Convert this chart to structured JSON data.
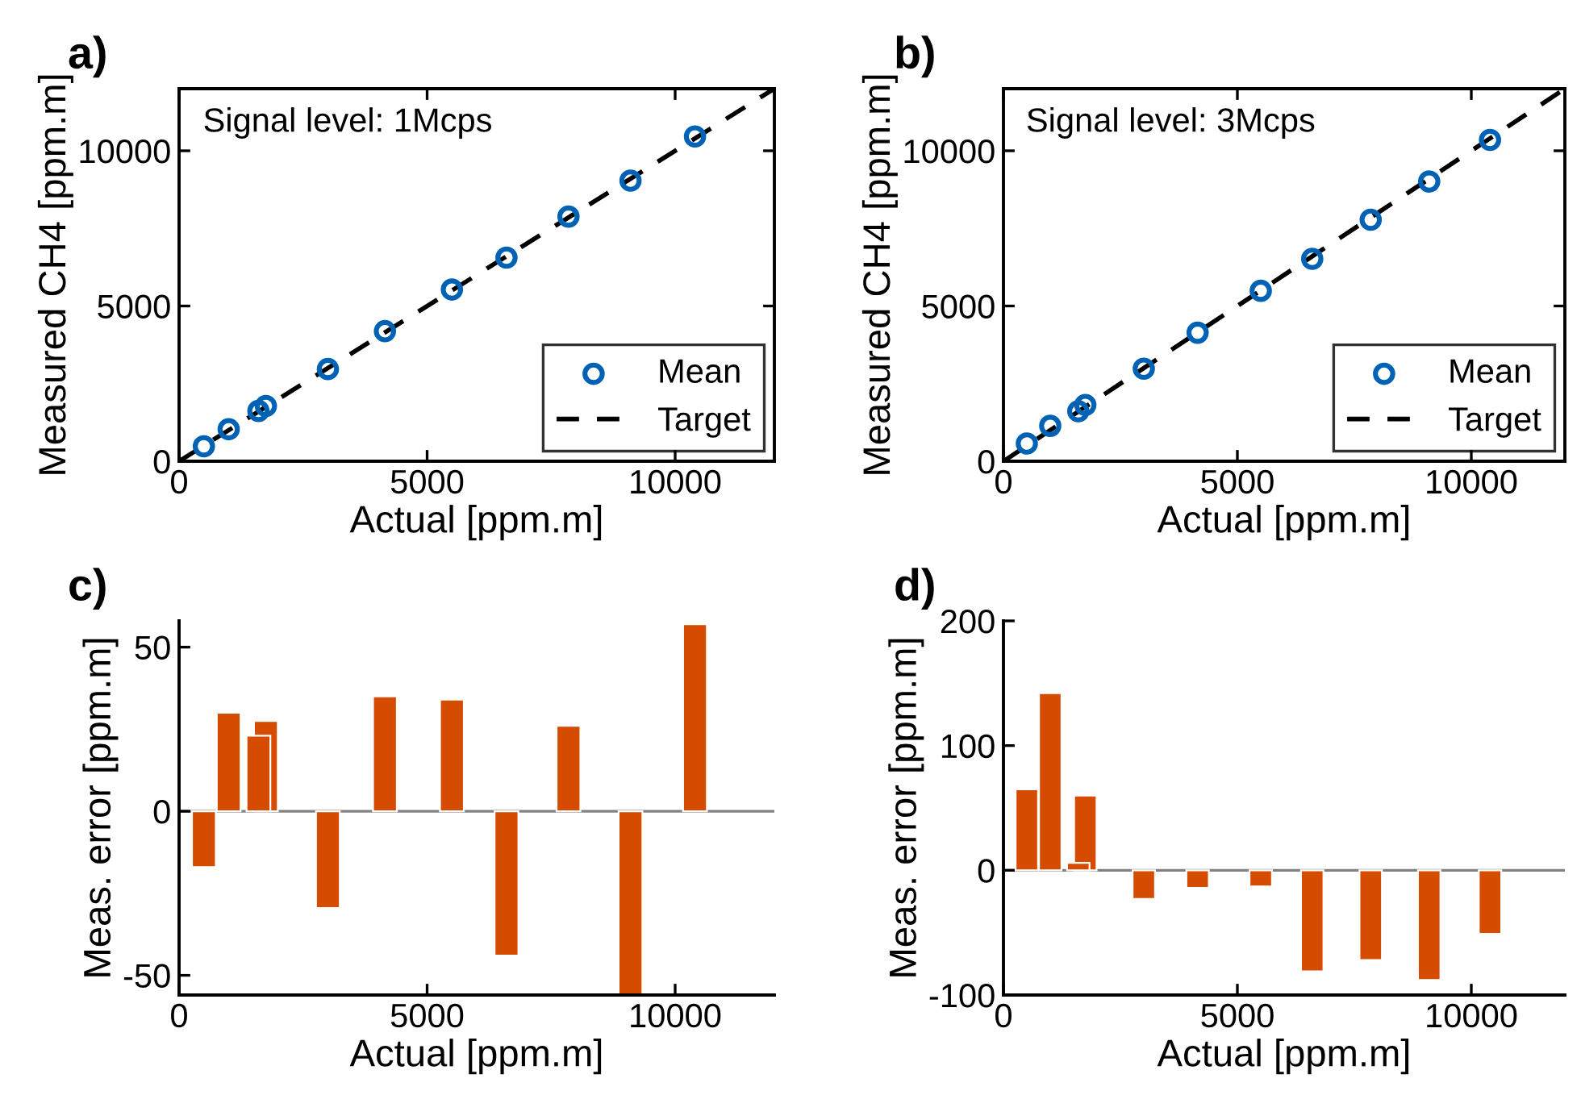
{
  "chart_data": [
    {
      "type": "scatter",
      "title": "a)",
      "xlabel": "Actual [ppm.m]",
      "ylabel": "Measured CH4 [ppm.m]",
      "annotations": [
        "Signal level: 1Mcps"
      ],
      "xlim": [
        0,
        12000
      ],
      "ylim": [
        0,
        12000
      ],
      "xticks": [
        0,
        5000,
        10000
      ],
      "yticks": [
        0,
        5000,
        10000
      ],
      "grid": false,
      "legend": "bottom right",
      "series": [
        {
          "name": "Mean",
          "type": "scatter",
          "marker": "circle",
          "color": "#0062b4",
          "x": [
            500,
            1000,
            1600,
            1750,
            3000,
            4150,
            5500,
            6600,
            7850,
            9100,
            10400
          ],
          "values": [
            480,
            1030,
            1620,
            1780,
            2970,
            4190,
            5530,
            6560,
            7880,
            9040,
            10460
          ]
        },
        {
          "name": "Target",
          "type": "line",
          "marker": "none",
          "line_style": "dashed",
          "color": "#000000",
          "x": [
            0,
            12000
          ],
          "values": [
            0,
            12000
          ]
        }
      ]
    },
    {
      "type": "scatter",
      "title": "b)",
      "xlabel": "Actual [ppm.m]",
      "ylabel": "Measured CH4 [ppm.m]",
      "annotations": [
        "Signal level: 3Mcps"
      ],
      "xlim": [
        0,
        12000
      ],
      "ylim": [
        0,
        12000
      ],
      "xticks": [
        0,
        5000,
        10000
      ],
      "yticks": [
        0,
        5000,
        10000
      ],
      "grid": false,
      "legend": "bottom right",
      "series": [
        {
          "name": "Mean",
          "type": "scatter",
          "marker": "circle",
          "color": "#0062b4",
          "x": [
            500,
            1000,
            1600,
            1750,
            3000,
            4150,
            5500,
            6600,
            7850,
            9100,
            10400
          ],
          "values": [
            570,
            1140,
            1610,
            1810,
            2980,
            4140,
            5490,
            6520,
            7780,
            9010,
            10350
          ]
        },
        {
          "name": "Target",
          "type": "line",
          "marker": "none",
          "line_style": "dashed",
          "color": "#000000",
          "x": [
            0,
            12000
          ],
          "values": [
            0,
            12000
          ]
        }
      ]
    },
    {
      "type": "bar",
      "title": "c)",
      "xlabel": "Actual [ppm.m]",
      "ylabel": "Meas. error [ppm.m]",
      "xlim": [
        0,
        12000
      ],
      "ylim": [
        -56,
        58
      ],
      "xticks": [
        0,
        5000,
        10000
      ],
      "yticks": [
        -50,
        0,
        50
      ],
      "grid": false,
      "ref_lines": [
        {
          "axis": "y",
          "value": 0,
          "color": "#808080"
        }
      ],
      "series": [
        {
          "type": "bar",
          "color": "#d54b00",
          "x": [
            500,
            1000,
            1600,
            1750,
            3000,
            4150,
            5500,
            6600,
            7850,
            9100,
            10400
          ],
          "values": [
            -17,
            30,
            23,
            27.5,
            -29.5,
            35,
            34,
            -44,
            26,
            -56,
            57
          ]
        }
      ]
    },
    {
      "type": "bar",
      "title": "d)",
      "xlabel": "Actual [ppm.m]",
      "ylabel": "Meas. error [ppm.m]",
      "xlim": [
        0,
        12000
      ],
      "ylim": [
        -100,
        200
      ],
      "xticks": [
        0,
        5000,
        10000
      ],
      "yticks": [
        -100,
        0,
        100,
        200
      ],
      "grid": false,
      "ref_lines": [
        {
          "axis": "y",
          "value": 0,
          "color": "#808080"
        }
      ],
      "series": [
        {
          "type": "bar",
          "color": "#d54b00",
          "x": [
            500,
            1000,
            1600,
            1750,
            3000,
            4150,
            5500,
            6600,
            7850,
            9100,
            10400
          ],
          "values": [
            65,
            142,
            6,
            60,
            -23,
            -14,
            -13,
            -81,
            -72,
            -88,
            -51
          ]
        }
      ]
    }
  ]
}
